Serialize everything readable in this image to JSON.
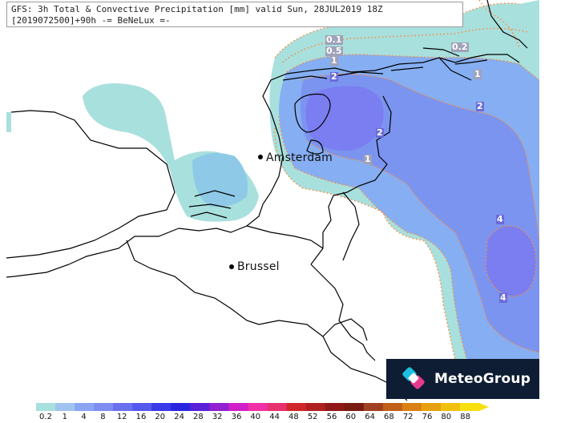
{
  "header": {
    "line1": "GFS: 3h Total & Convective Precipitation [mm] valid Sun, 28JUL2019 18Z",
    "line2": "[2019072500]+90h -= BeNeLux =-"
  },
  "cities": [
    {
      "name": "Amsterdam"
    },
    {
      "name": "Brussel"
    }
  ],
  "contour_labels": [
    "0.1",
    "0.5",
    "1",
    "2",
    "1",
    "2",
    "0.2",
    "1",
    "2",
    "4",
    "4",
    "1"
  ],
  "logo": {
    "text": "MeteoGroup"
  },
  "legend": {
    "ticks": [
      "0.2",
      "1",
      "4",
      "8",
      "12",
      "16",
      "20",
      "24",
      "28",
      "32",
      "36",
      "40",
      "44",
      "48",
      "52",
      "56",
      "60",
      "64",
      "68",
      "72",
      "76",
      "80",
      "88"
    ],
    "colors": [
      "#a8e0de",
      "#a0c4ef",
      "#8aa4f2",
      "#7f8cf0",
      "#6a70ee",
      "#5558ee",
      "#3a3ae8",
      "#2a26e0",
      "#5a20d8",
      "#9020d0",
      "#d020c8",
      "#f030a8",
      "#e83070",
      "#d02828",
      "#b02020",
      "#901818",
      "#7a1a10",
      "#a04020",
      "#c06018",
      "#d88010",
      "#e8a010",
      "#f0c010",
      "#f8e010"
    ]
  },
  "colors": {
    "precip_light": "#a8e0de",
    "precip_mid": "#7fa6f2",
    "precip_heavy": "#7b88ef",
    "contour": "#ff8a3a",
    "land_border": "#000000"
  }
}
